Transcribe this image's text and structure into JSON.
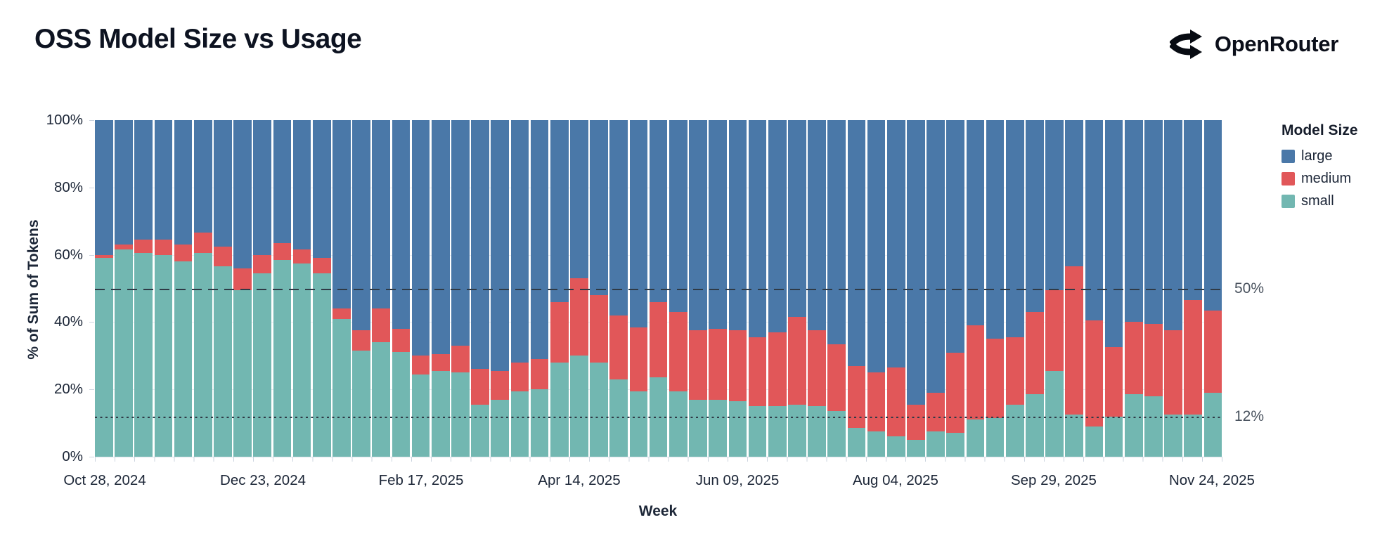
{
  "header": {
    "title": "OSS Model Size vs Usage",
    "brand": "OpenRouter"
  },
  "chart_data": {
    "type": "bar",
    "stacked": true,
    "title": "OSS Model Size vs Usage",
    "xlabel": "Week",
    "ylabel": "% of Sum of Tokens",
    "ylim": [
      0,
      100
    ],
    "grid": true,
    "legend_title": "Model Size",
    "legend_position": "right",
    "y_ticks": [
      {
        "value": 100,
        "label": "100%"
      },
      {
        "value": 80,
        "label": "80%"
      },
      {
        "value": 60,
        "label": "60%"
      },
      {
        "value": 40,
        "label": "40%"
      },
      {
        "value": 20,
        "label": "20%"
      },
      {
        "value": 0,
        "label": "0%"
      }
    ],
    "x_ticks": [
      {
        "index": 0,
        "label": "Oct 28, 2024"
      },
      {
        "index": 8,
        "label": "Dec 23, 2024"
      },
      {
        "index": 16,
        "label": "Feb 17, 2025"
      },
      {
        "index": 24,
        "label": "Apr 14, 2025"
      },
      {
        "index": 32,
        "label": "Jun 09, 2025"
      },
      {
        "index": 40,
        "label": "Aug 04, 2025"
      },
      {
        "index": 48,
        "label": "Sep 29, 2025"
      },
      {
        "index": 56,
        "label": "Nov 24, 2025"
      }
    ],
    "reference_lines": [
      {
        "value": 50,
        "label": "50%",
        "style": "dashed"
      },
      {
        "value": 12,
        "label": "12%",
        "style": "dotted"
      }
    ],
    "categories": [
      "Oct 28, 2024",
      "Nov 04, 2024",
      "Nov 11, 2024",
      "Nov 18, 2024",
      "Nov 25, 2024",
      "Dec 02, 2024",
      "Dec 09, 2024",
      "Dec 16, 2024",
      "Dec 23, 2024",
      "Dec 30, 2024",
      "Jan 06, 2025",
      "Jan 13, 2025",
      "Jan 20, 2025",
      "Jan 27, 2025",
      "Feb 03, 2025",
      "Feb 10, 2025",
      "Feb 17, 2025",
      "Feb 24, 2025",
      "Mar 03, 2025",
      "Mar 10, 2025",
      "Mar 17, 2025",
      "Mar 24, 2025",
      "Mar 31, 2025",
      "Apr 07, 2025",
      "Apr 14, 2025",
      "Apr 21, 2025",
      "Apr 28, 2025",
      "May 05, 2025",
      "May 12, 2025",
      "May 19, 2025",
      "May 26, 2025",
      "Jun 02, 2025",
      "Jun 09, 2025",
      "Jun 16, 2025",
      "Jun 23, 2025",
      "Jun 30, 2025",
      "Jul 07, 2025",
      "Jul 14, 2025",
      "Jul 21, 2025",
      "Jul 28, 2025",
      "Aug 04, 2025",
      "Aug 11, 2025",
      "Aug 18, 2025",
      "Aug 25, 2025",
      "Sep 01, 2025",
      "Sep 08, 2025",
      "Sep 15, 2025",
      "Sep 22, 2025",
      "Sep 29, 2025",
      "Oct 06, 2025",
      "Oct 13, 2025",
      "Oct 20, 2025",
      "Oct 27, 2025",
      "Nov 03, 2025",
      "Nov 10, 2025",
      "Nov 17, 2025",
      "Nov 24, 2025"
    ],
    "series": [
      {
        "name": "large",
        "color": "#4a78a8",
        "values": [
          40,
          37,
          35.5,
          35.5,
          37,
          33.5,
          37.5,
          44,
          40,
          36.5,
          38.5,
          41,
          56,
          62.5,
          56,
          62,
          70,
          69.5,
          67,
          74,
          74.5,
          72,
          71,
          54,
          47,
          52,
          58,
          61.5,
          54,
          57,
          62.5,
          62,
          62.5,
          64.5,
          63,
          58.5,
          62.5,
          66.5,
          73,
          75,
          73.5,
          84.5,
          81,
          69,
          61,
          65,
          64.5,
          57,
          50.5,
          43.5,
          59.5,
          67.5,
          60,
          60.5,
          62.5,
          53.5,
          56.5
        ]
      },
      {
        "name": "medium",
        "color": "#e15759",
        "values": [
          1,
          1.5,
          4,
          4.5,
          5,
          6,
          6,
          6.5,
          5.5,
          5,
          4,
          4.5,
          3,
          6,
          10,
          7,
          5.5,
          5,
          8,
          10.5,
          8.5,
          8.5,
          9,
          18,
          23,
          20,
          19,
          19,
          22.5,
          23.5,
          20.5,
          21,
          21,
          20.5,
          22,
          26,
          22.5,
          20,
          18.5,
          17.5,
          20.5,
          10.5,
          11.5,
          24,
          28,
          23.5,
          20,
          24.5,
          24,
          44,
          31.5,
          20.5,
          21.5,
          21.5,
          25,
          34,
          24.5
        ]
      },
      {
        "name": "small",
        "color": "#72b7b1",
        "values": [
          59,
          61.5,
          60.5,
          60,
          58,
          60.5,
          56.5,
          49.5,
          54.5,
          58.5,
          57.5,
          54.5,
          41,
          31.5,
          34,
          31,
          24.5,
          25.5,
          25,
          15.5,
          17,
          19.5,
          20,
          28,
          30,
          28,
          23,
          19.5,
          23.5,
          19.5,
          17,
          17,
          16.5,
          15,
          15,
          15.5,
          15,
          13.5,
          8.5,
          7.5,
          6,
          5,
          7.5,
          7,
          11,
          11.5,
          15.5,
          18.5,
          25.5,
          12.5,
          9,
          12,
          18.5,
          18,
          12.5,
          12.5,
          19
        ]
      }
    ]
  }
}
